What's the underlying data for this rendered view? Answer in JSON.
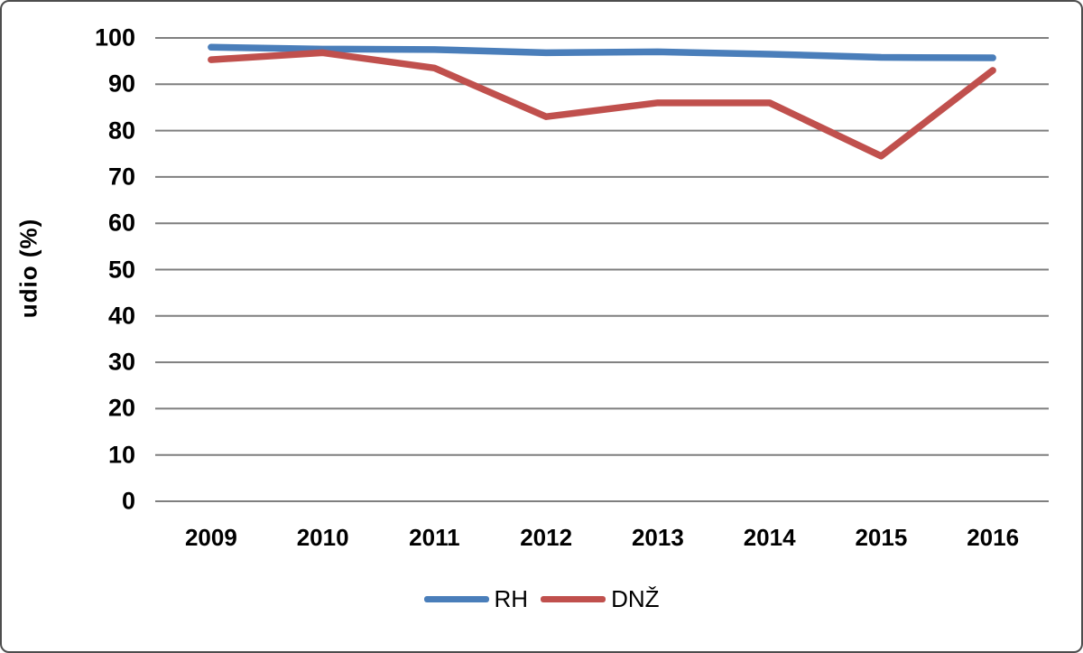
{
  "chart_data": {
    "type": "line",
    "categories": [
      "2009",
      "2010",
      "2011",
      "2012",
      "2013",
      "2014",
      "2015",
      "2016"
    ],
    "series": [
      {
        "name": "RH",
        "color": "#4a7eba",
        "values": [
          98.0,
          97.6,
          97.5,
          96.8,
          97.0,
          96.5,
          95.8,
          95.7
        ]
      },
      {
        "name": "DNŽ",
        "color": "#c0504d",
        "values": [
          95.3,
          96.8,
          93.5,
          83.0,
          86.0,
          86.0,
          74.5,
          93.0
        ]
      }
    ],
    "title": "",
    "xlabel": "",
    "ylabel": "udio (%)",
    "ylim": [
      0,
      100
    ],
    "ytick_step": 10,
    "grid": true,
    "legend_position": "bottom"
  },
  "colors": {
    "gridline": "#7f7f7f",
    "figure_border": "#4d4d4d",
    "text": "#000000",
    "background": "#ffffff"
  }
}
